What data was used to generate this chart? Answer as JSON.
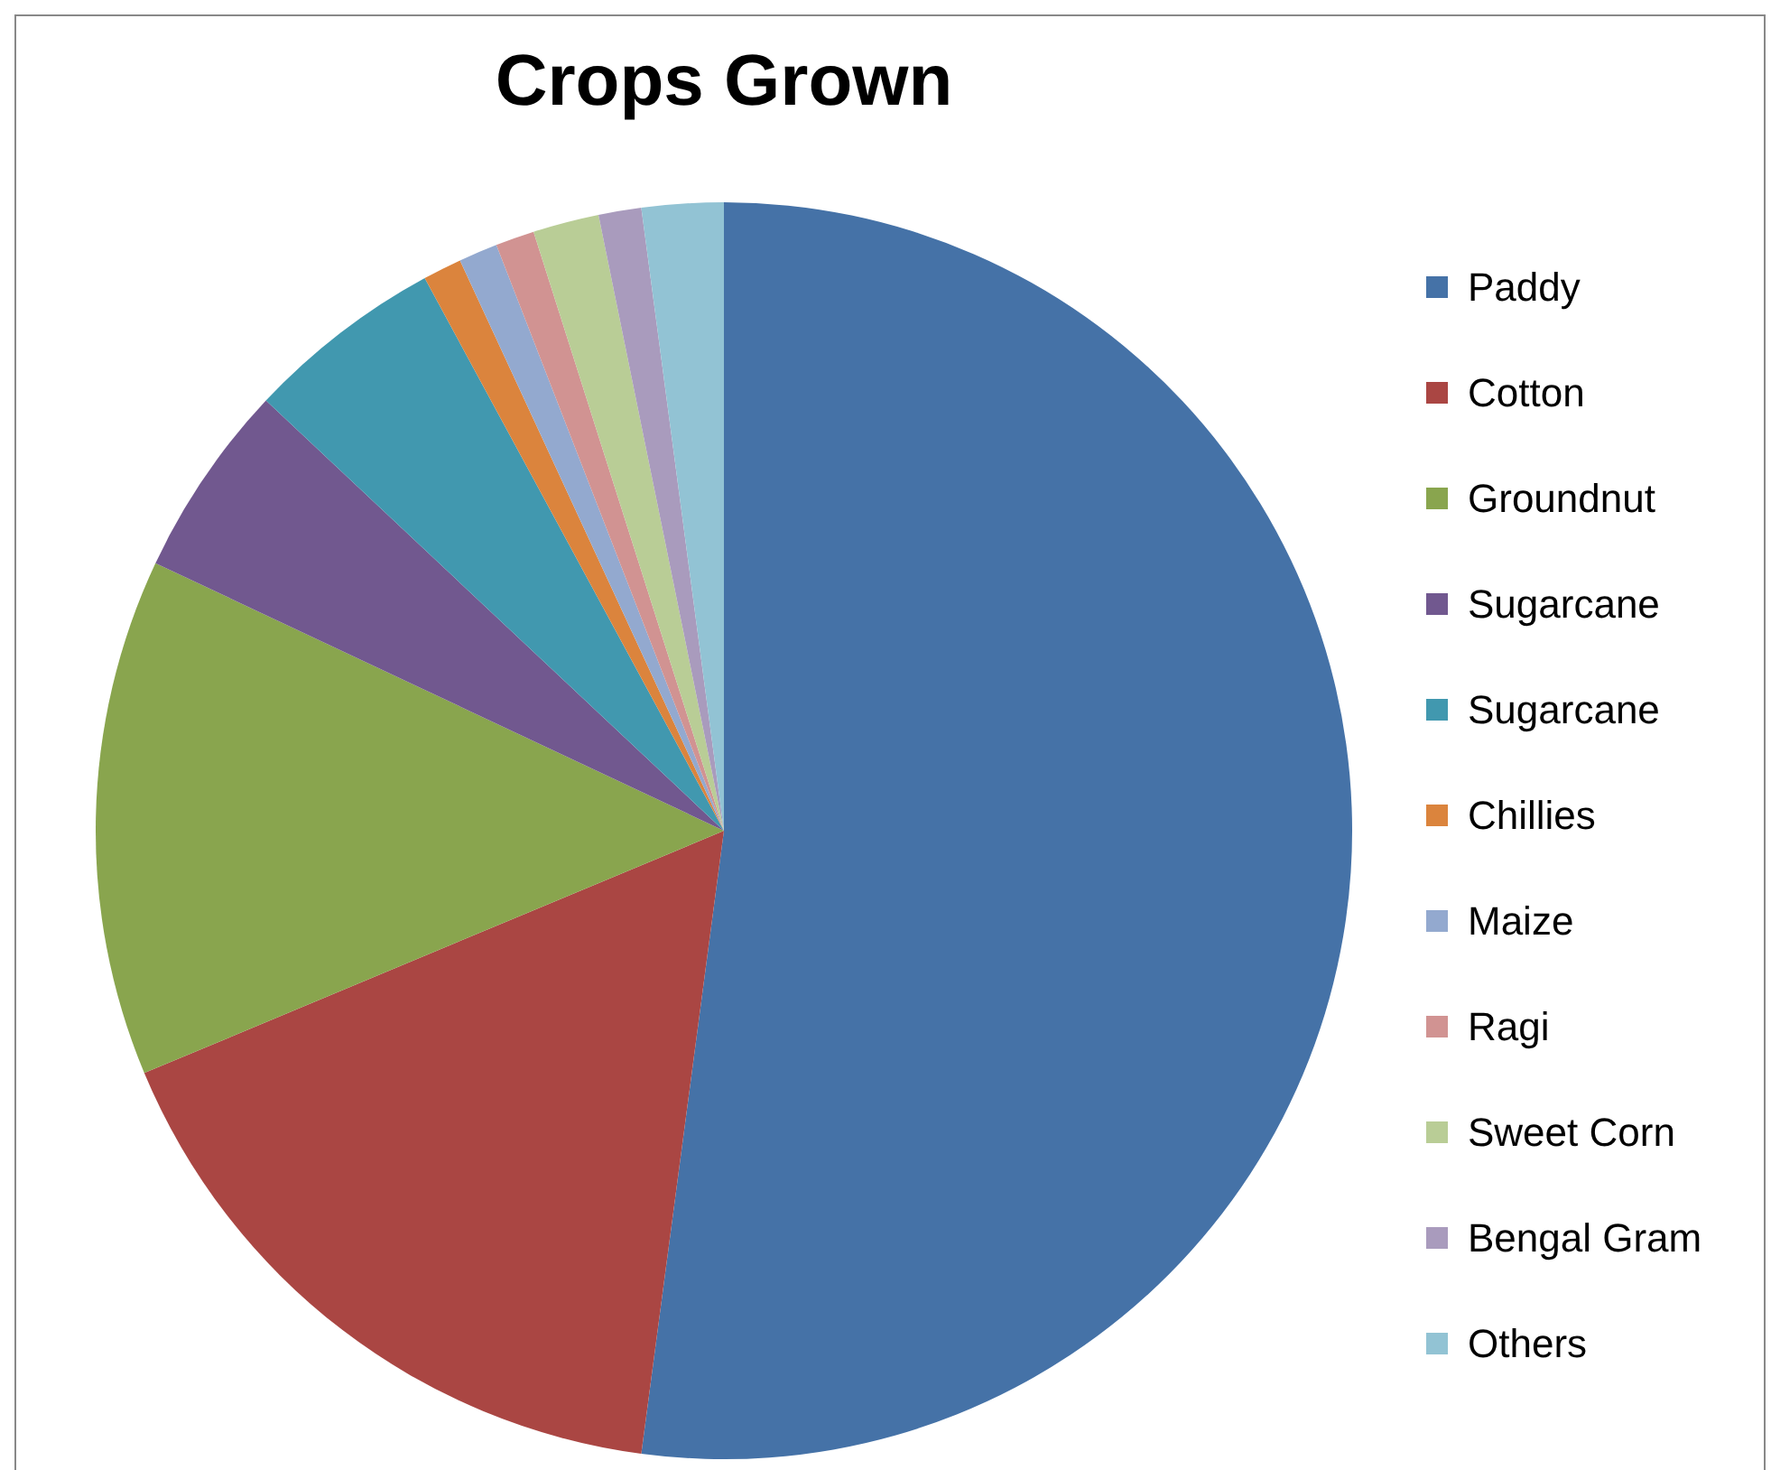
{
  "chart_data": {
    "type": "pie",
    "title": "Crops Grown",
    "categories": [
      "Paddy",
      "Cotton",
      "Groundnut",
      "Sugarcane",
      "Sugarcane",
      "Chillies",
      "Maize",
      "Ragi",
      "Sweet Corn",
      "Bengal Gram",
      "Others"
    ],
    "values": [
      52.1,
      16.6,
      13.3,
      5.0,
      5.1,
      1.0,
      1.0,
      1.0,
      1.7,
      1.1,
      2.1
    ],
    "colors": [
      "#4572a7",
      "#aa4643",
      "#89a54e",
      "#71588f",
      "#4198af",
      "#db843d",
      "#93a9cf",
      "#d19392",
      "#b9cd96",
      "#a99bbd",
      "#92c3d4"
    ],
    "legend": "right"
  }
}
